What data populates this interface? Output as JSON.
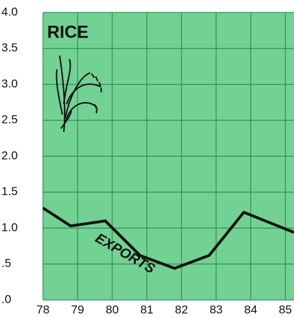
{
  "chart_data": {
    "type": "line",
    "annotations": [
      "RICE",
      "EXPORTS"
    ],
    "x": [
      78,
      78.8,
      79.8,
      80.8,
      81.8,
      82.8,
      83.8,
      85.25
    ],
    "series": [
      {
        "name": "EXPORTS",
        "color": "#111111",
        "values": [
          1.28,
          1.03,
          1.1,
          0.62,
          0.44,
          0.62,
          1.22,
          0.94
        ]
      }
    ],
    "xlim": [
      78,
      85.25
    ],
    "xticks": [
      78,
      79,
      80,
      81,
      82,
      83,
      84,
      85
    ],
    "ylim": [
      0,
      4
    ],
    "yticks": [
      {
        "value": 0,
        "label": ".0"
      },
      {
        "value": 0.5,
        "label": ".5"
      },
      {
        "value": 1,
        "label": "1.0"
      },
      {
        "value": 1.5,
        "label": "1.5"
      },
      {
        "value": 2,
        "label": "2.0"
      },
      {
        "value": 2.5,
        "label": "2.5"
      },
      {
        "value": 3,
        "label": "3.0"
      },
      {
        "value": 3.5,
        "label": "3.5"
      },
      {
        "value": 4,
        "label": "4.0"
      }
    ],
    "grid": true,
    "background": "#72d293"
  }
}
